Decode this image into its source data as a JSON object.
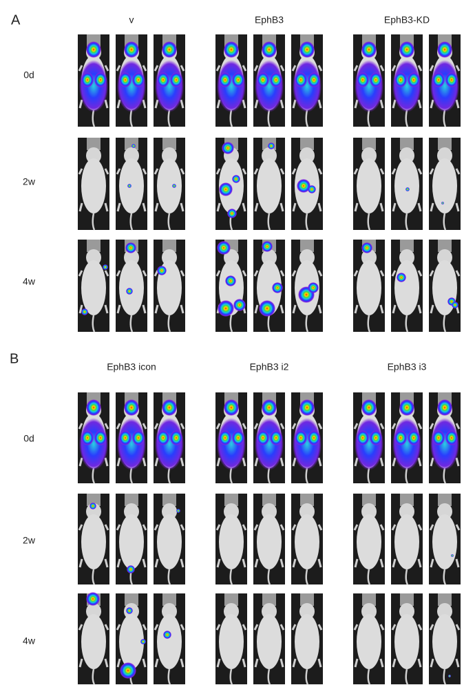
{
  "panels": [
    {
      "letter": "A",
      "columns": [
        "v",
        "EphB3",
        "EphB3-KD"
      ],
      "rows": [
        "0d",
        "2w",
        "4w"
      ]
    },
    {
      "letter": "B",
      "columns": [
        "EphB3 icon",
        "EphB3 i2",
        "EphB3 i3"
      ],
      "rows": [
        "0d",
        "2w",
        "4w"
      ]
    }
  ]
}
